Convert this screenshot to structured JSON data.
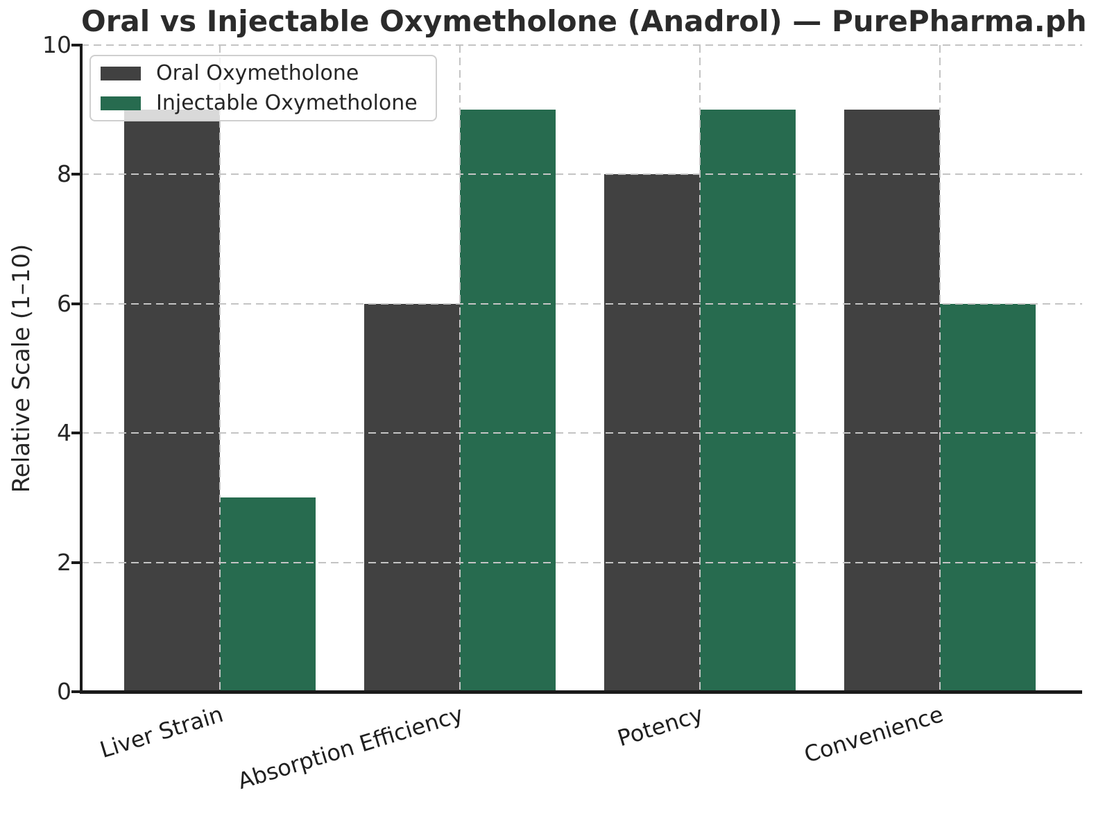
{
  "chart_data": {
    "type": "bar",
    "title": "Oral vs Injectable Oxymetholone (Anadrol) — PurePharma.ph",
    "ylabel": "Relative Scale (1–10)",
    "xlabel": "",
    "categories": [
      "Liver Strain",
      "Absorption Efficiency",
      "Potency",
      "Convenience"
    ],
    "series": [
      {
        "name": "Oral Oxymetholone",
        "color": "#414141",
        "values": [
          9,
          6,
          8,
          9
        ]
      },
      {
        "name": "Injectable Oxymetholone",
        "color": "#276b4f",
        "values": [
          3,
          9,
          9,
          6
        ]
      }
    ],
    "ylim": [
      0,
      10
    ],
    "yticks": [
      "0",
      "2",
      "4",
      "6",
      "8",
      "10"
    ],
    "grid": true,
    "grid_linestyle": "dashed",
    "legend_position": "upper-left",
    "colors": {
      "grid": "#c4c4c4",
      "axis": "#1a1a1a",
      "text": "#262626",
      "title": "#2b2b2b",
      "legend_border": "#cfcfcf",
      "legend_background": "rgba(255,255,255,0.8)",
      "background": "#ffffff"
    }
  }
}
